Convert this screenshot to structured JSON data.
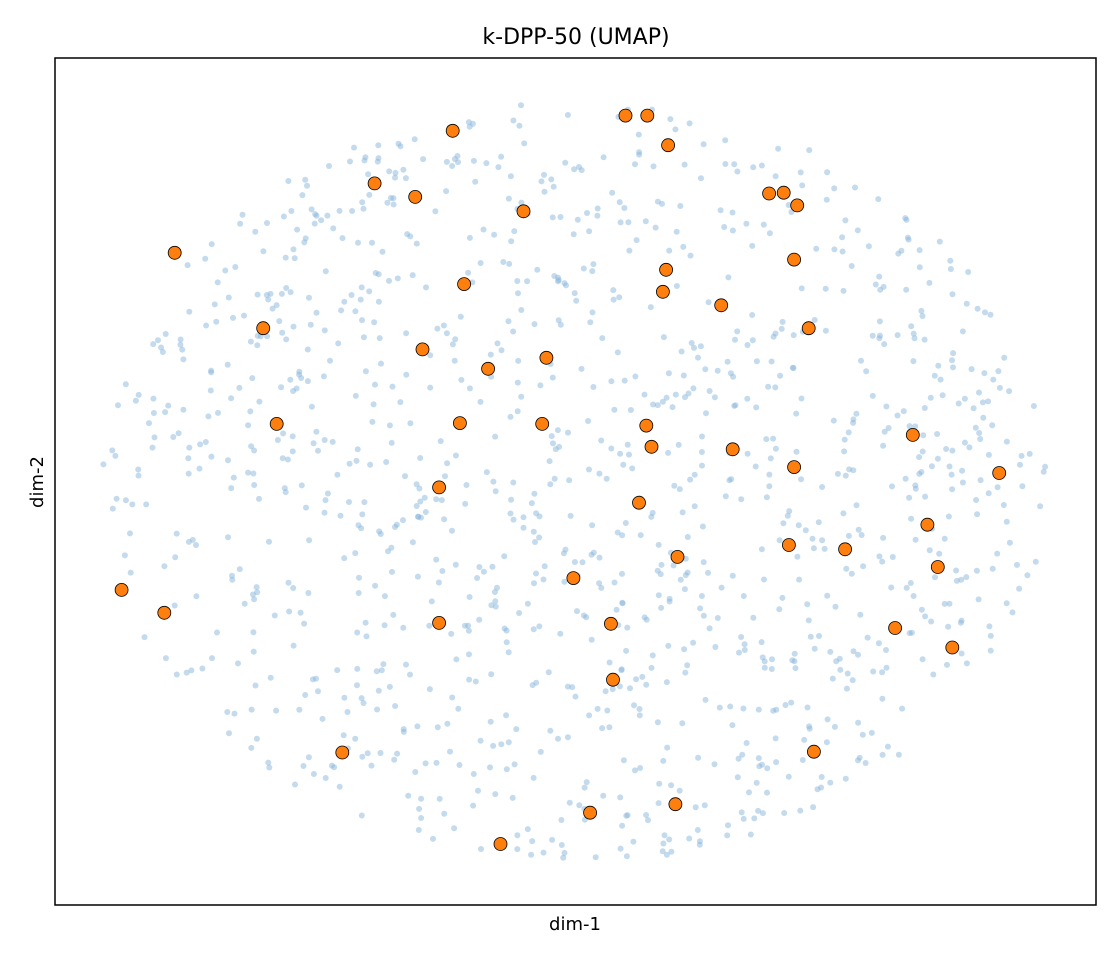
{
  "chart_data": {
    "type": "scatter",
    "title": "k-DPP-50 (UMAP)",
    "xlabel": "dim-1",
    "ylabel": "dim-2",
    "xlim": [
      0,
      10
    ],
    "ylim": [
      0,
      10
    ],
    "xticks": [],
    "yticks": [],
    "grid": false,
    "legend": "none",
    "colors": {
      "background_points": "#8ab6dc",
      "selected_points": "#ff7f0e",
      "selected_edge": "#000000"
    },
    "background_points": {
      "approximate_count": 1200,
      "note_on_extent": "points fill an elliptical cloud roughly x 0.45-9.5, y 0.5-9.5"
    },
    "series": [
      {
        "name": "",
        "points": [
          [
            5.48,
            9.32
          ],
          [
            5.69,
            9.32
          ],
          [
            3.82,
            9.14
          ],
          [
            5.89,
            8.97
          ],
          [
            3.07,
            8.52
          ],
          [
            3.46,
            8.36
          ],
          [
            6.86,
            8.4
          ],
          [
            7.0,
            8.41
          ],
          [
            7.13,
            8.26
          ],
          [
            4.5,
            8.19
          ],
          [
            1.15,
            7.7
          ],
          [
            7.1,
            7.62
          ],
          [
            5.87,
            7.5
          ],
          [
            3.93,
            7.33
          ],
          [
            5.84,
            7.24
          ],
          [
            6.4,
            7.08
          ],
          [
            2.0,
            6.81
          ],
          [
            7.24,
            6.81
          ],
          [
            3.53,
            6.56
          ],
          [
            4.72,
            6.46
          ],
          [
            4.16,
            6.33
          ],
          [
            2.13,
            5.68
          ],
          [
            3.89,
            5.69
          ],
          [
            4.68,
            5.68
          ],
          [
            5.68,
            5.66
          ],
          [
            5.73,
            5.41
          ],
          [
            6.51,
            5.38
          ],
          [
            8.24,
            5.55
          ],
          [
            7.1,
            5.17
          ],
          [
            9.07,
            5.1
          ],
          [
            3.69,
            4.93
          ],
          [
            5.61,
            4.75
          ],
          [
            8.38,
            4.49
          ],
          [
            7.05,
            4.25
          ],
          [
            7.59,
            4.2
          ],
          [
            5.98,
            4.11
          ],
          [
            8.48,
            3.99
          ],
          [
            4.98,
            3.86
          ],
          [
            0.64,
            3.72
          ],
          [
            1.05,
            3.45
          ],
          [
            3.69,
            3.33
          ],
          [
            5.34,
            3.32
          ],
          [
            8.07,
            3.27
          ],
          [
            8.62,
            3.04
          ],
          [
            5.36,
            2.66
          ],
          [
            2.76,
            1.8
          ],
          [
            7.29,
            1.81
          ],
          [
            5.96,
            1.19
          ],
          [
            5.14,
            1.09
          ],
          [
            4.28,
            0.72
          ]
        ]
      }
    ]
  }
}
